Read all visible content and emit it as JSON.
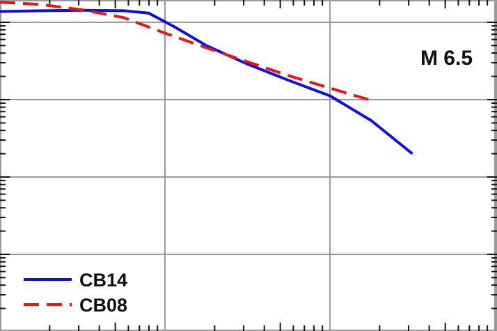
{
  "chart_data": {
    "type": "line",
    "x_scale": "log",
    "y_scale": "log",
    "grid": true,
    "x_decades": 3,
    "y_decades": 4,
    "annotation": "M 6.5",
    "legend_position": "bottom-left",
    "colors": {
      "CB14": "#1010d8",
      "CB08": "#e41818"
    },
    "series": [
      {
        "name": "CB14",
        "style": "solid",
        "color": "#1010d8",
        "points": [
          {
            "x": 0.0,
            "y": 3.14
          },
          {
            "x": 0.25,
            "y": 3.15
          },
          {
            "x": 0.5,
            "y": 3.155
          },
          {
            "x": 0.75,
            "y": 3.15
          },
          {
            "x": 0.9,
            "y": 3.12
          },
          {
            "x": 1.05,
            "y": 2.95
          },
          {
            "x": 1.25,
            "y": 2.7
          },
          {
            "x": 1.5,
            "y": 2.46
          },
          {
            "x": 1.75,
            "y": 2.25
          },
          {
            "x": 2.0,
            "y": 2.05
          },
          {
            "x": 2.25,
            "y": 1.73
          },
          {
            "x": 2.5,
            "y": 1.3
          }
        ]
      },
      {
        "name": "CB08",
        "style": "dashed",
        "color": "#e41818",
        "points": [
          {
            "x": 0.0,
            "y": 3.26
          },
          {
            "x": 0.25,
            "y": 3.23
          },
          {
            "x": 0.5,
            "y": 3.16
          },
          {
            "x": 0.75,
            "y": 3.06
          },
          {
            "x": 1.0,
            "y": 2.86
          },
          {
            "x": 1.25,
            "y": 2.67
          },
          {
            "x": 1.5,
            "y": 2.49
          },
          {
            "x": 1.75,
            "y": 2.31
          },
          {
            "x": 2.0,
            "y": 2.15
          },
          {
            "x": 2.25,
            "y": 1.99
          }
        ]
      }
    ]
  }
}
